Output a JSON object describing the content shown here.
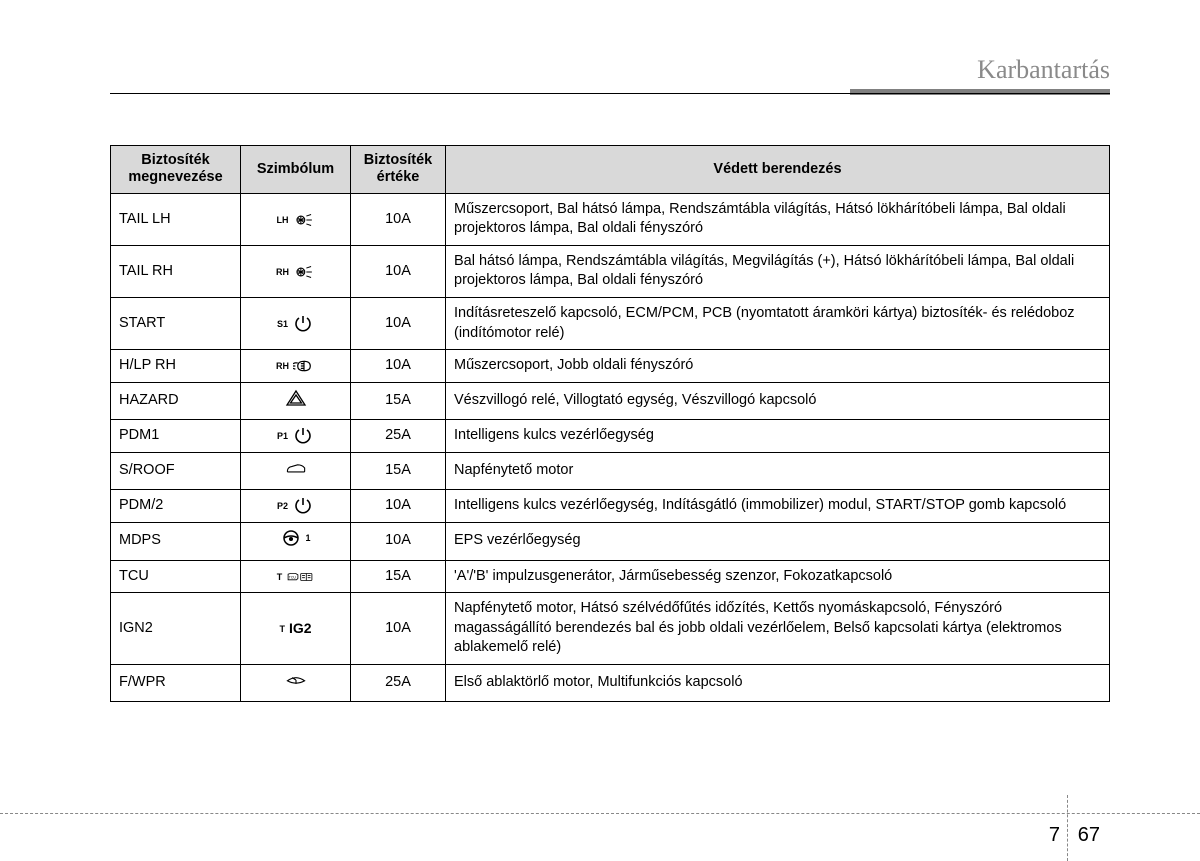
{
  "section_title": "Karbantartás",
  "page_left": "7",
  "page_right": "67",
  "headers": {
    "col1": "Biztosíték megnevezése",
    "col2": "Szimbólum",
    "col3": "Biztosíték értéke",
    "col4": "Védett berendezés"
  },
  "rows": [
    {
      "name": "TAIL LH",
      "sym_pre": "LH",
      "sym_icon": "lamp",
      "value": "10A",
      "desc": "Műszercsoport, Bal hátsó lámpa, Rendszámtábla világítás, Hátsó lökhárítóbeli lámpa, Bal oldali projektoros lámpa, Bal oldali fényszóró"
    },
    {
      "name": "TAIL RH",
      "sym_pre": "RH",
      "sym_icon": "lamp",
      "value": "10A",
      "desc": "Bal hátsó lámpa, Rendszámtábla világítás, Megvilágítás (+), Hátsó lökhárítóbeli lámpa, Bal oldali projektoros lámpa, Bal oldali fényszóró"
    },
    {
      "name": "START",
      "sym_pre": "S1",
      "sym_icon": "start",
      "value": "10A",
      "desc": "Indításreteszelő kapcsoló, ECM/PCM, PCB (nyomtatott áramköri kártya) biztosíték- és relédoboz (indítómotor relé)"
    },
    {
      "name": "H/LP RH",
      "sym_pre": "RH",
      "sym_icon": "headlamp",
      "value": "10A",
      "desc": "Műszercsoport, Jobb oldali fényszóró"
    },
    {
      "name": "HAZARD",
      "sym_pre": "",
      "sym_icon": "hazard",
      "value": "15A",
      "desc": "Vészvillogó relé, Villogtató egység, Vészvillogó kapcsoló"
    },
    {
      "name": "PDM1",
      "sym_pre": "P1",
      "sym_icon": "start",
      "value": "25A",
      "desc": "Intelligens kulcs vezérlőegység"
    },
    {
      "name": "S/ROOF",
      "sym_pre": "",
      "sym_icon": "car",
      "value": "15A",
      "desc": "Napfénytető motor"
    },
    {
      "name": "PDM/2",
      "sym_pre": "P2",
      "sym_icon": "start",
      "value": "10A",
      "desc": "Intelligens kulcs vezérlőegység, Indításgátló (immobilizer) modul, START/STOP gomb kapcsoló"
    },
    {
      "name": "MDPS",
      "sym_pre": "",
      "sym_icon": "steering",
      "sym_post": "1",
      "value": "10A",
      "desc": "EPS vezérlőegység"
    },
    {
      "name": "TCU",
      "sym_pre": "T",
      "sym_icon": "tcu",
      "value": "15A",
      "desc": "'A'/'B' impulzusgenerátor, Járműsebesség szenzor, Fokozatkapcsoló"
    },
    {
      "name": "IGN2",
      "sym_pre": "T",
      "sym_text": "IG2",
      "value": "10A",
      "desc": "Napfénytető motor, Hátsó szélvédőfűtés időzítés, Kettős nyomáskapcsoló, Fényszóró magasságállító berendezés bal és jobb oldali vezérlőelem, Belső kapcsolati kártya (elektromos ablakemelő relé)"
    },
    {
      "name": "F/WPR",
      "sym_pre": "",
      "sym_icon": "wiper",
      "value": "25A",
      "desc": "Első ablaktörlő motor, Multifunkciós kapcsoló"
    }
  ]
}
